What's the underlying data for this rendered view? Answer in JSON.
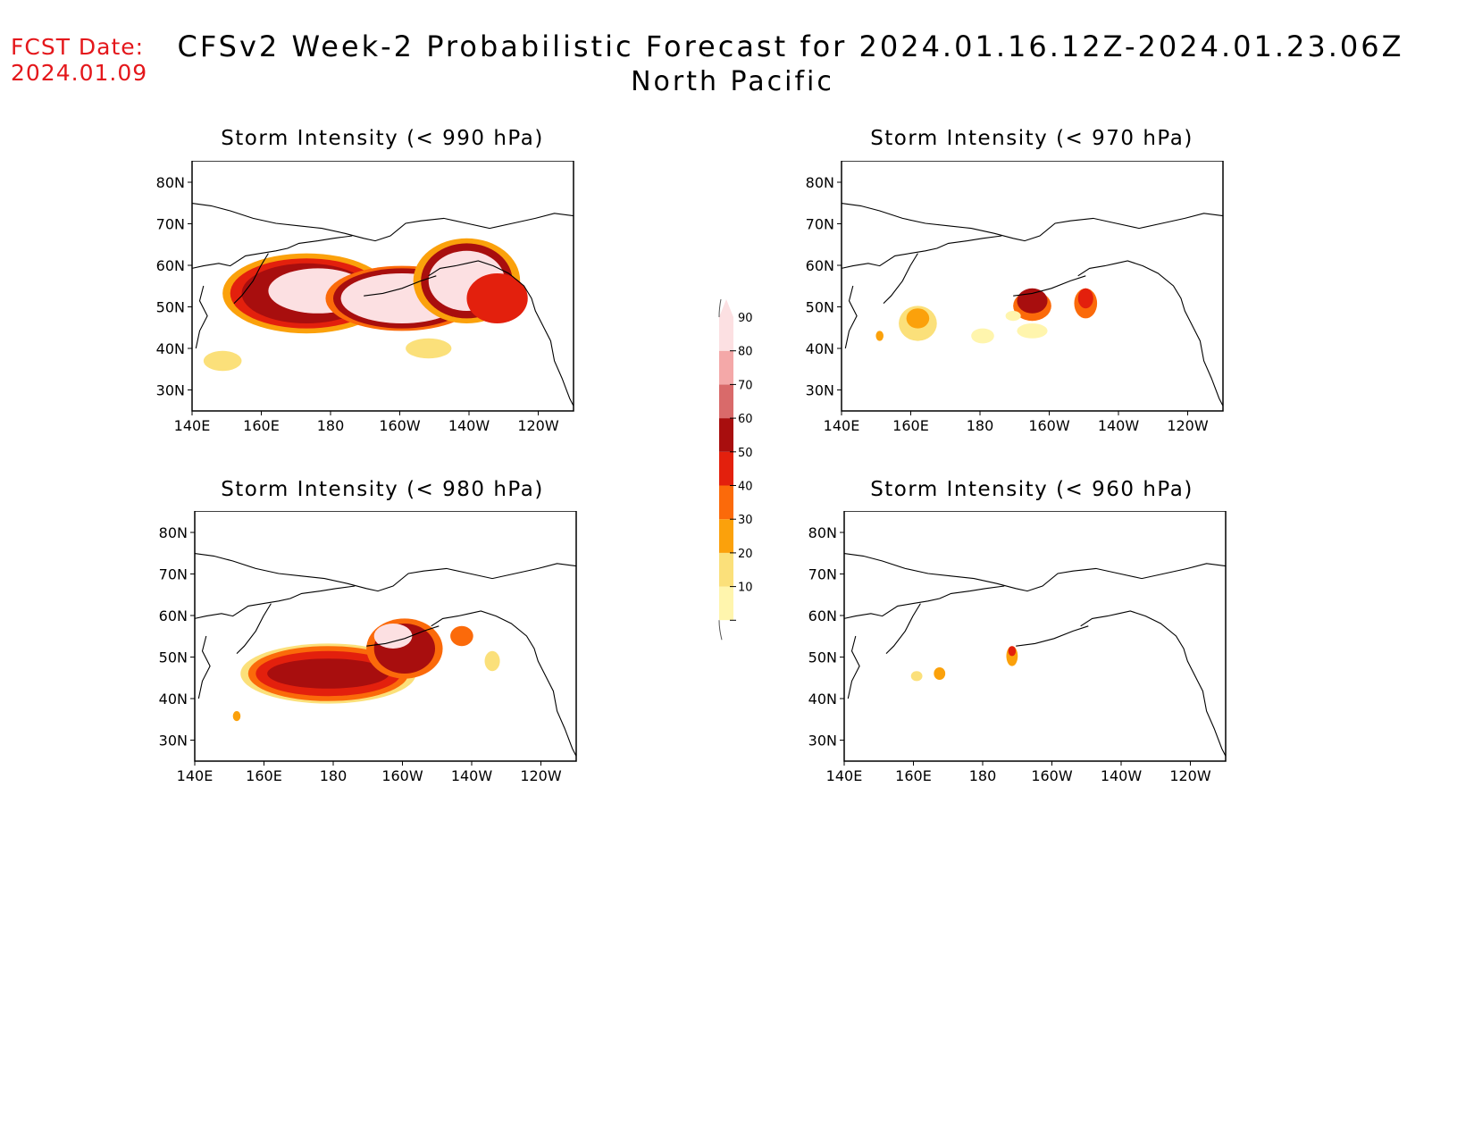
{
  "header": {
    "fcst_label": "FCST Date:",
    "fcst_date": "2024.01.09",
    "title": "CFSv2 Week-2 Probabilistic Forecast for 2024.01.16.12Z-2024.01.23.06Z",
    "region": "North Pacific"
  },
  "panels": [
    {
      "title": "Storm Intensity (< 990 hPa)",
      "coverage": "extensive"
    },
    {
      "title": "Storm Intensity (< 970 hPa)",
      "coverage": "moderate"
    },
    {
      "title": "Storm Intensity (< 980 hPa)",
      "coverage": "substantial"
    },
    {
      "title": "Storm Intensity (< 960 hPa)",
      "coverage": "minimal"
    }
  ],
  "axes": {
    "lat_labels": [
      "80N",
      "70N",
      "60N",
      "50N",
      "40N",
      "30N"
    ],
    "lon_labels": [
      "140E",
      "160E",
      "180",
      "160W",
      "140W",
      "120W"
    ]
  },
  "colorbar": {
    "levels": [
      "10",
      "20",
      "30",
      "40",
      "50",
      "60",
      "70",
      "80",
      "90"
    ],
    "colors": [
      "#fff5ad",
      "#fbe07a",
      "#fba10b",
      "#fb6a0a",
      "#e3200d",
      "#a80e0e",
      "#d96a6a",
      "#f4a8a8",
      "#fce0e2"
    ]
  }
}
